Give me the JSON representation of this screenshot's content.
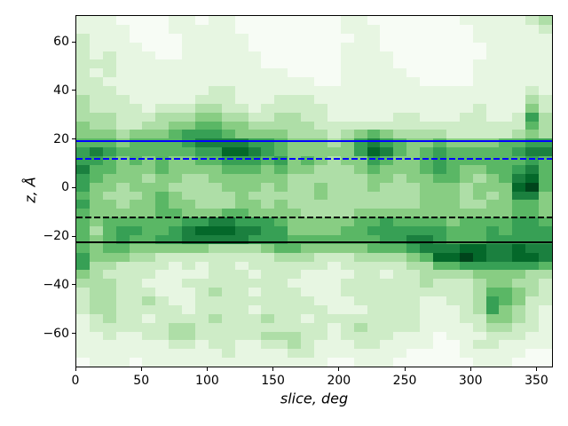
{
  "chart_data": {
    "type": "heatmap",
    "title": "",
    "xlabel": "slice, deg",
    "ylabel": "z, Å",
    "xlim": [
      0,
      362.5
    ],
    "ylim": [
      -74,
      71
    ],
    "x_ticks": [
      0,
      50,
      100,
      150,
      200,
      250,
      300,
      350
    ],
    "y_ticks": [
      -60,
      -40,
      -20,
      0,
      20,
      40,
      60
    ],
    "grid_on": false,
    "legend": "none",
    "colormap": "Greens",
    "palette": [
      "#f7fcf5",
      "#e7f6e2",
      "#ceecc7",
      "#aedea7",
      "#88cd83",
      "#5ab765",
      "#37a055",
      "#1b803f",
      "#04682a",
      "#00441b"
    ],
    "grid": {
      "cols": 36,
      "rows": 40,
      "x_start_deg": 0,
      "x_bin_deg": 10,
      "z_top_angstrom": 71,
      "z_bin_angstrom": 3.625
    },
    "value_scale": {
      "min": 0,
      "max": 9,
      "note": "relative density digit per cell, 0 = lowest (near white), 9 = highest (darkest green); rows listed top (z=71) to bottom (z=-74)"
    },
    "values": [
      "111000011011000000001100000001111123",
      "111100011111000000001110000000111112",
      "211100001111100000000110000000111111",
      "211110001111100000001110000000011111",
      "212111001111110000001111000000011111",
      "222111111111110000001111000000111111",
      "212111111111111100001111100000111111",
      "221111111111111111001111110000111111",
      "222111111122111111111111111111111121",
      "322211111222111222111111111111111132",
      "322221222332212222211111111111211142",
      "333222333443322332211111221112211263",
      "433223344554433333222222222222222253",
      "444344456665444433323454333322222343",
      "555455556777766544434676544544445566",
      "676555555668876544444687545655555677",
      "665454544556665645434465445655555565",
      "755444544445554544333454445654455675",
      "654443443344444433333344344554345785",
      "644344433334443433433343334443444895",
      "543334543333433333433333334443434774",
      "644344544333443433333333334443344554",
      "544444554445544443333444444444444554",
      "545555556677666544444556555545555665",
      "535665567888776644445566666655565666",
      "545655667777766655555556677655566666",
      "545544444433334554444455567778877877",
      "644433222222222333222333345889877887",
      "633222212122122222212222233556666665",
      "432222111122212221111221223333444433",
      "333221112222222211112222223222344332",
      "233222111232212221112222222222355432",
      "233223211222222222111222221122365422",
      "233222221222212222211122221112364321",
      "123221222232223221222222221112244321",
      "122222233222222222212322221111233221",
      "112112233222223332212222111011122211",
      "111111122122112232111221111001221111",
      "111111111112111122111111100001111100",
      "011101111111111111100111000000111000"
    ],
    "hlines": [
      {
        "z": 19.0,
        "color": "#0000ff",
        "style": "solid",
        "name": "hline-blue-solid"
      },
      {
        "z": 11.7,
        "color": "#0000ff",
        "style": "dashed",
        "name": "hline-blue-dashed"
      },
      {
        "z": -12.3,
        "color": "#000000",
        "style": "dashed",
        "name": "hline-black-dashed"
      },
      {
        "z": -22.5,
        "color": "#000000",
        "style": "solid",
        "name": "hline-black-solid"
      }
    ]
  }
}
